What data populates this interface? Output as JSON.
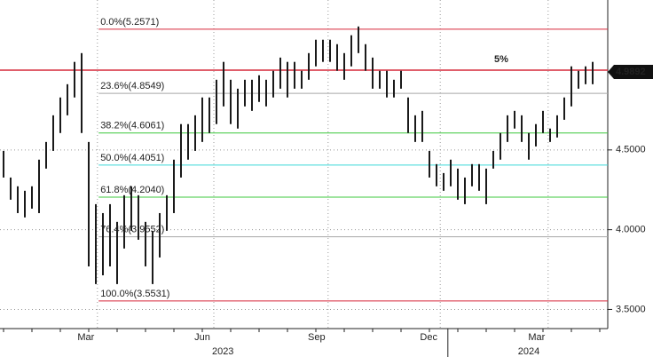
{
  "chart_data": {
    "type": "hl_bar",
    "color": "#1a1a1a",
    "xlim": [
      -0.5,
      85.125
    ],
    "ylim": [
      3.38,
      5.44
    ],
    "yticks": [
      {
        "value": 3.5,
        "label": "3.5000"
      },
      {
        "value": 4.0,
        "label": "4.0000"
      },
      {
        "value": 4.5,
        "label": "4.5000"
      }
    ],
    "xticks": [
      {
        "value": 11.6,
        "label": "Mar"
      },
      {
        "value": 28,
        "label": "Jun"
      },
      {
        "value": 44.1,
        "label": "Sep"
      },
      {
        "value": 59.9,
        "label": "Dec"
      },
      {
        "value": 75.1,
        "label": "Mar"
      }
    ],
    "years": [
      {
        "value": 30.9,
        "label": "2023"
      },
      {
        "value": 74,
        "label": "2024"
      }
    ],
    "year_separator": 62.6,
    "grid": true,
    "series": [
      {
        "high": [
          4.494,
          4.327,
          4.272,
          4.244,
          4.272,
          4.439,
          4.55,
          4.717,
          4.829,
          4.912,
          5.052,
          5.107,
          4.55,
          4.16,
          4.104,
          4.16,
          4.049,
          4.216,
          4.272,
          4.216,
          4.049,
          3.993,
          4.104,
          4.216,
          4.439,
          4.662,
          4.662,
          4.717,
          4.829,
          4.829,
          4.94,
          5.052,
          4.94,
          4.884,
          4.94,
          4.94,
          4.968,
          4.94,
          4.996,
          5.079,
          5.052,
          5.052,
          4.996,
          5.107,
          5.191,
          5.191,
          5.191,
          5.163,
          5.107,
          5.219,
          5.274,
          5.163,
          5.079,
          4.996,
          4.996,
          4.94,
          4.996,
          4.829,
          4.717,
          4.745,
          4.494,
          4.411,
          4.355,
          4.439,
          4.383,
          4.327,
          4.411,
          4.411,
          4.383,
          4.494,
          4.606,
          4.717,
          4.745,
          4.717,
          4.606,
          4.662,
          4.745,
          4.634,
          4.717,
          4.829,
          5.024,
          4.996,
          5.024,
          5.052
        ],
        "low": [
          4.327,
          4.188,
          4.104,
          4.077,
          4.132,
          4.104,
          4.383,
          4.494,
          4.606,
          4.717,
          4.829,
          4.606,
          3.77,
          3.659,
          3.714,
          3.77,
          3.659,
          3.882,
          3.993,
          3.937,
          3.77,
          3.659,
          3.826,
          3.993,
          4.104,
          4.327,
          4.439,
          4.494,
          4.55,
          4.606,
          4.662,
          4.773,
          4.662,
          4.634,
          4.773,
          4.745,
          4.801,
          4.773,
          4.829,
          4.884,
          4.829,
          4.884,
          4.884,
          4.94,
          5.024,
          5.052,
          5.052,
          4.996,
          4.94,
          5.024,
          5.107,
          4.996,
          4.884,
          4.884,
          4.829,
          4.829,
          4.884,
          4.606,
          4.55,
          4.55,
          4.327,
          4.272,
          4.244,
          4.272,
          4.188,
          4.16,
          4.272,
          4.244,
          4.16,
          4.383,
          4.439,
          4.55,
          4.634,
          4.55,
          4.439,
          4.522,
          4.606,
          4.55,
          4.578,
          4.689,
          4.773,
          4.884,
          4.912,
          4.912
        ]
      }
    ],
    "fib_start": 13.4,
    "fib_levels": [
      {
        "value": 5.2571,
        "label": "0.0%(5.2571)",
        "color": "#d6283a"
      },
      {
        "value": 4.8549,
        "label": "23.6%(4.8549)",
        "color": "#a8a8a8"
      },
      {
        "value": 4.6061,
        "label": "38.2%(4.6061)",
        "color": "#3cc83c"
      },
      {
        "value": 4.4051,
        "label": "50.0%(4.4051)",
        "color": "#3cd6d6"
      },
      {
        "value": 4.204,
        "label": "61.8%(4.2040)",
        "color": "#3cc83c"
      },
      {
        "value": 3.9552,
        "label": "76.4%(3.9552)",
        "color": "#a8a8a8"
      },
      {
        "value": 3.5531,
        "label": "100.0%(3.5531)",
        "color": "#d6283a"
      }
    ],
    "threshold": {
      "value": 5,
      "label": "5%",
      "color": "#d6283a"
    },
    "last_price": {
      "value": 4.9892,
      "label": "4.9892"
    }
  }
}
